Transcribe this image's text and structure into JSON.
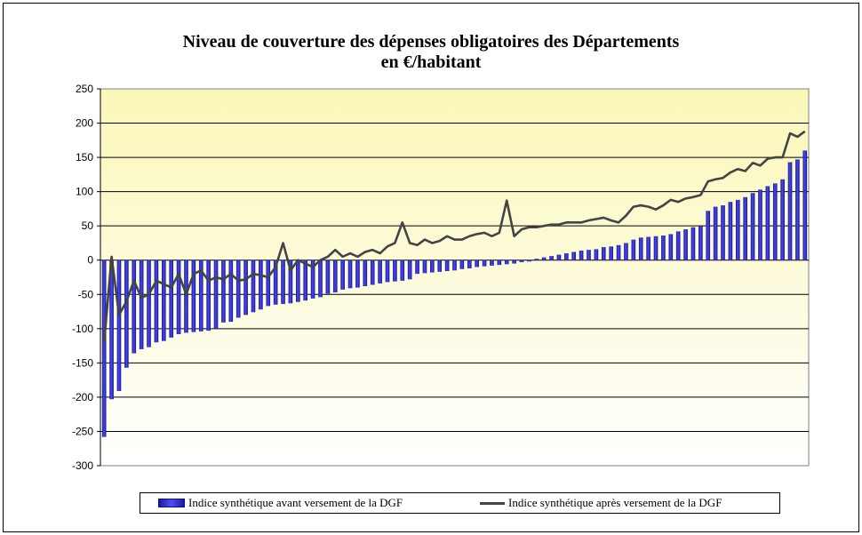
{
  "chart_data": {
    "type": "bar+line",
    "title_line1": "Niveau de couverture des dépenses obligatoires des Départements",
    "title_line2": "en €/habitant",
    "xlabel": "",
    "ylabel": "",
    "ylim": [
      -300,
      250
    ],
    "yticks": [
      "250",
      "200",
      "150",
      "100",
      "50",
      "0",
      "-50",
      "-100",
      "-150",
      "-200",
      "-250",
      "-300"
    ],
    "grid": true,
    "legend_position": "bottom",
    "series": [
      {
        "name": "Indice synthétique avant versement de la DGF",
        "type": "bar",
        "color": "#2b2bd0",
        "values": [
          -258,
          -203,
          -191,
          -157,
          -136,
          -130,
          -127,
          -120,
          -118,
          -113,
          -108,
          -106,
          -105,
          -104,
          -103,
          -100,
          -91,
          -90,
          -84,
          -80,
          -76,
          -72,
          -67,
          -65,
          -64,
          -63,
          -61,
          -59,
          -56,
          -54,
          -49,
          -47,
          -43,
          -41,
          -40,
          -38,
          -36,
          -34,
          -32,
          -31,
          -30,
          -28,
          -20,
          -19,
          -18,
          -17,
          -16,
          -15,
          -13,
          -12,
          -10,
          -9,
          -8,
          -7,
          -6,
          -5,
          -3,
          -2,
          2,
          4,
          6,
          8,
          10,
          12,
          14,
          15,
          16,
          19,
          20,
          22,
          25,
          30,
          33,
          34,
          35,
          36,
          38,
          42,
          45,
          48,
          50,
          72,
          78,
          80,
          85,
          88,
          92,
          98,
          103,
          108,
          112,
          118,
          143,
          147,
          160
        ]
      },
      {
        "name": "Indice synthétique après versement de la DGF",
        "type": "line",
        "color": "#444444",
        "values": [
          -120,
          5,
          -80,
          -60,
          -30,
          -55,
          -50,
          -30,
          -35,
          -40,
          -20,
          -50,
          -20,
          -15,
          -30,
          -25,
          -28,
          -20,
          -30,
          -28,
          -20,
          -22,
          -25,
          -10,
          25,
          -15,
          0,
          -5,
          -10,
          0,
          5,
          15,
          5,
          10,
          5,
          12,
          15,
          10,
          20,
          25,
          55,
          25,
          22,
          30,
          25,
          28,
          35,
          30,
          30,
          35,
          38,
          40,
          35,
          40,
          87,
          35,
          45,
          48,
          48,
          50,
          52,
          52,
          55,
          55,
          55,
          58,
          60,
          62,
          58,
          55,
          65,
          78,
          80,
          78,
          74,
          80,
          88,
          85,
          90,
          92,
          95,
          115,
          118,
          120,
          128,
          133,
          130,
          142,
          138,
          148,
          150,
          150,
          185,
          180,
          188
        ]
      }
    ]
  }
}
